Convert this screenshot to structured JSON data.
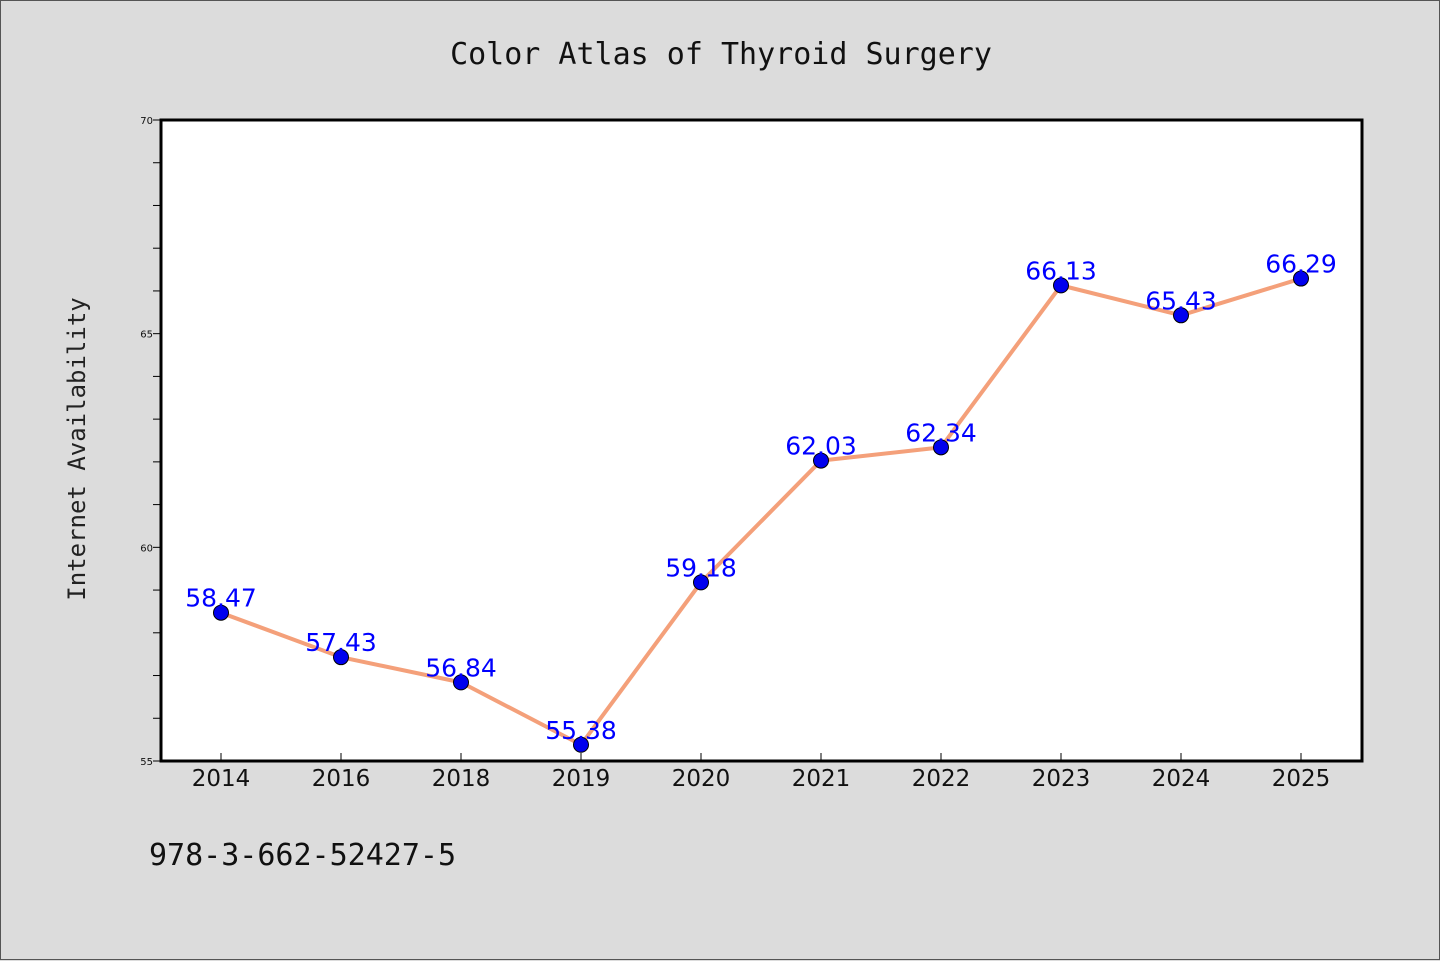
{
  "chart_data": {
    "type": "line",
    "title": "Color Atlas of Thyroid Surgery",
    "xlabel": "",
    "ylabel": "Internet Availability",
    "categories": [
      "2014",
      "2016",
      "2018",
      "2019",
      "2020",
      "2021",
      "2022",
      "2023",
      "2024",
      "2025"
    ],
    "series": [
      {
        "values": [
          58.47,
          57.43,
          56.84,
          55.38,
          59.18,
          62.03,
          62.34,
          66.13,
          65.43,
          66.29
        ]
      }
    ],
    "data_labels": [
      "58.47",
      "57.43",
      "56.84",
      "55.38",
      "59.18",
      "62.03",
      "62.34",
      "66.13",
      "65.43",
      "66.29"
    ],
    "ylim": [
      55,
      70
    ],
    "yticks": [
      "55",
      "60",
      "65",
      "70"
    ],
    "grid": false,
    "legend": "none",
    "colors": {
      "line": "#f4a07a",
      "marker": "#0000ee",
      "label": "#0000ff",
      "plot_bg": "#ffffff",
      "page_bg": "#dcdcdc"
    }
  },
  "footer": {
    "isbn": "978-3-662-52427-5"
  }
}
